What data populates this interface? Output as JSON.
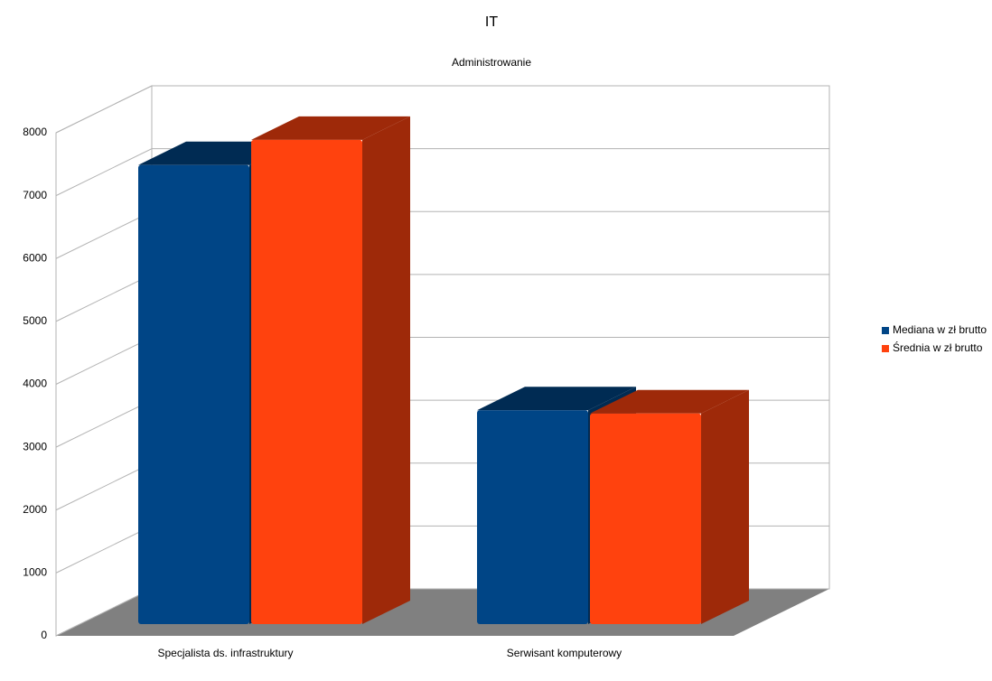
{
  "chart_data": {
    "type": "bar3d",
    "title": "IT",
    "subtitle": "Administrowanie",
    "categories": [
      "Specjalista ds. infrastruktury",
      "Serwisant komputerowy"
    ],
    "series": [
      {
        "name": "Mediana w zł brutto",
        "color": "#004586",
        "values": [
          7300,
          3400
        ]
      },
      {
        "name": "Średnia w zł brutto",
        "color": "#ff420e",
        "values": [
          7700,
          3350
        ]
      }
    ],
    "ylim": [
      0,
      8000
    ],
    "yticks": [
      0,
      1000,
      2000,
      3000,
      4000,
      5000,
      6000,
      7000,
      8000
    ],
    "grid": true,
    "legend": "right"
  }
}
